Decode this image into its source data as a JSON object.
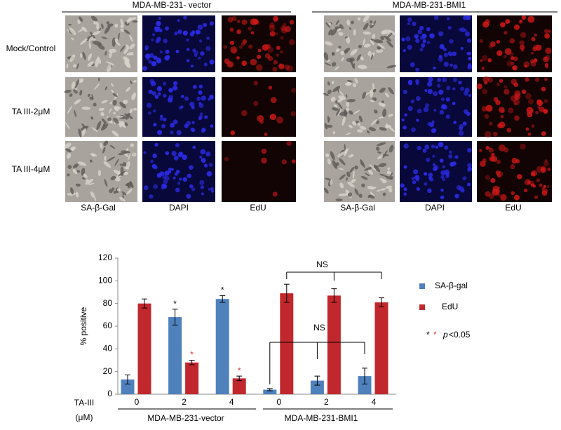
{
  "panels": {
    "groups": [
      "MDA-MB-231- vector",
      "MDA-MB-231-BMI1"
    ],
    "rows": [
      "Mock/Control",
      "TA III-2μM",
      "TA III-4μM"
    ],
    "columns": [
      "SA-β-Gal",
      "DAPI",
      "EdU"
    ]
  },
  "chart_data": {
    "type": "bar",
    "ylabel": "% positive",
    "xlabel": [
      "TA-III",
      "(μM)"
    ],
    "categories": [
      "0",
      "2",
      "4",
      "0",
      "2",
      "4"
    ],
    "group_labels": [
      "MDA-MB-231-vector",
      "MDA-MB-231-BMI1"
    ],
    "series": [
      {
        "name": "SA-β-gal",
        "color": "#4f81bd",
        "values": [
          13,
          68,
          84,
          4,
          12,
          16
        ],
        "errors": [
          4,
          7,
          3,
          1,
          4,
          7
        ],
        "star_labels": [
          null,
          "*",
          "*",
          null,
          null,
          null
        ],
        "star_color": "#000000"
      },
      {
        "name": "EdU",
        "color": "#c0282d",
        "values": [
          80,
          28,
          14,
          89,
          87,
          81
        ],
        "errors": [
          4,
          2,
          2,
          8,
          6,
          4
        ],
        "star_labels": [
          null,
          "*",
          "*",
          null,
          null,
          null
        ],
        "star_color": "#e03030"
      }
    ],
    "ylim": [
      0,
      120
    ],
    "yticks": [
      0,
      20,
      40,
      60,
      80,
      100,
      120
    ],
    "ns_labels": [
      "NS",
      "NS"
    ],
    "significance": {
      "stars": [
        "*",
        "*"
      ],
      "p": "p",
      "threshold": "<0.05"
    }
  }
}
